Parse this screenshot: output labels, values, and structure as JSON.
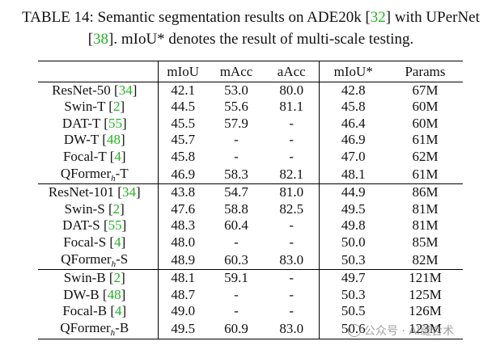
{
  "caption": {
    "label": "TABLE 14:",
    "text_a": " Semantic segmentation results on ADE20k [",
    "ref_a": "32",
    "text_b": "] with UPerNet [",
    "ref_b": "38",
    "text_c": "]. mIoU* denotes the result of multi-scale testing."
  },
  "table": {
    "headers": [
      "",
      "mIoU",
      "mAcc",
      "aAcc",
      "mIoU*",
      "Params"
    ],
    "groups": [
      [
        {
          "name": "ResNet-50 [",
          "ref": "34",
          "close": "]",
          "cells": [
            "42.1",
            "53.0",
            "80.0",
            "42.8",
            "67M"
          ]
        },
        {
          "name": "Swin-T [",
          "ref": "2",
          "close": "]",
          "cells": [
            "44.5",
            "55.6",
            "81.1",
            "45.8",
            "60M"
          ]
        },
        {
          "name": "DAT-T [",
          "ref": "55",
          "close": "]",
          "cells": [
            "45.5",
            "57.9",
            "-",
            "46.4",
            "60M"
          ]
        },
        {
          "name": "DW-T [",
          "ref": "48",
          "close": "]",
          "cells": [
            "45.7",
            "-",
            "-",
            "46.9",
            "61M"
          ]
        },
        {
          "name": "Focal-T [",
          "ref": "4",
          "close": "]",
          "cells": [
            "45.8",
            "-",
            "-",
            "47.0",
            "62M"
          ]
        },
        {
          "name": "QFormer",
          "sub": "h",
          "suffix": "-T",
          "cells": [
            "46.9",
            "58.3",
            "82.1",
            "48.1",
            "61M"
          ]
        }
      ],
      [
        {
          "name": "ResNet-101 [",
          "ref": "34",
          "close": "]",
          "cells": [
            "43.8",
            "54.7",
            "81.0",
            "44.9",
            "86M"
          ]
        },
        {
          "name": "Swin-S [",
          "ref": "2",
          "close": "]",
          "cells": [
            "47.6",
            "58.8",
            "82.5",
            "49.5",
            "81M"
          ]
        },
        {
          "name": "DAT-S [",
          "ref": "55",
          "close": "]",
          "cells": [
            "48.3",
            "60.4",
            "-",
            "49.8",
            "81M"
          ]
        },
        {
          "name": "Focal-S [",
          "ref": "4",
          "close": "]",
          "cells": [
            "48.0",
            "-",
            "-",
            "50.0",
            "85M"
          ]
        },
        {
          "name": "QFormer",
          "sub": "h",
          "suffix": "-S",
          "cells": [
            "48.9",
            "60.3",
            "83.0",
            "50.3",
            "82M"
          ]
        }
      ],
      [
        {
          "name": "Swin-B [",
          "ref": "2",
          "close": "]",
          "cells": [
            "48.1",
            "59.1",
            "-",
            "49.7",
            "121M"
          ]
        },
        {
          "name": "DW-B [",
          "ref": "48",
          "close": "]",
          "cells": [
            "48.7",
            "-",
            "-",
            "50.3",
            "125M"
          ]
        },
        {
          "name": "Focal-B [",
          "ref": "4",
          "close": "]",
          "cells": [
            "49.0",
            "-",
            "-",
            "50.5",
            "126M"
          ]
        },
        {
          "name": "QFormer",
          "sub": "h",
          "suffix": "-B",
          "cells": [
            "49.5",
            "60.9",
            "83.0",
            "50.6",
            "123M"
          ]
        }
      ]
    ]
  },
  "watermark": "公众号 · AI缝合术",
  "colors": {
    "reference_link": "#22b522",
    "text": "#111111"
  }
}
